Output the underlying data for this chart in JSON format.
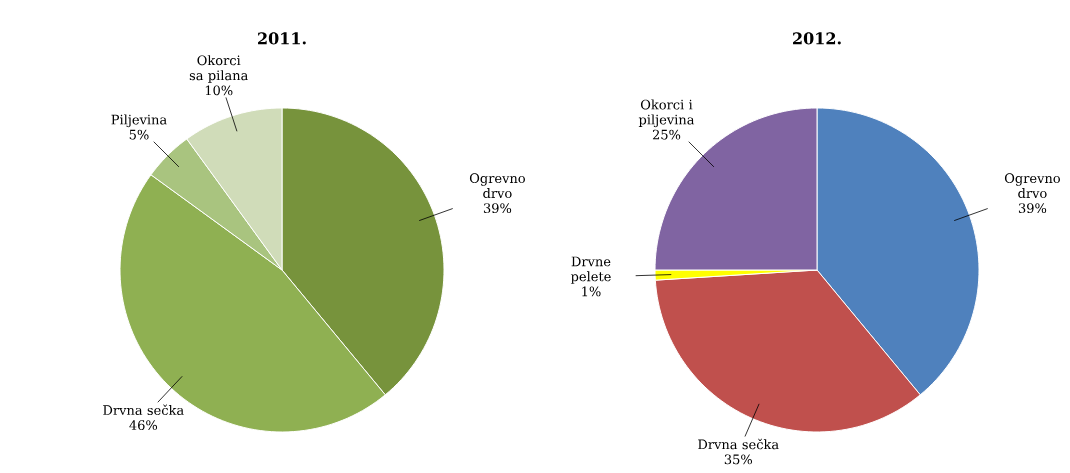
{
  "chart_data": [
    {
      "type": "pie",
      "title": "2011.",
      "categories": [
        "Ogrevno drvo",
        "Drvna sečka",
        "Piljevina",
        "Okorci sa pilana"
      ],
      "values": [
        39,
        46,
        5,
        10
      ],
      "value_labels": [
        "39%",
        "46%",
        "5%",
        "10%"
      ],
      "colors": [
        "#77933c",
        "#8fb052",
        "#a9c47f",
        "#d0dcb9"
      ]
    },
    {
      "type": "pie",
      "title": "2012.",
      "categories": [
        "Ogrevno drvo",
        "Drvna sečka",
        "Drvne pelete",
        "Okorci i piljevina"
      ],
      "values": [
        39,
        35,
        1,
        25
      ],
      "value_labels": [
        "39%",
        "35%",
        "1%",
        "25%"
      ],
      "colors": [
        "#4f81bd",
        "#c0504d",
        "#ffff00",
        "#8064a2"
      ]
    }
  ]
}
